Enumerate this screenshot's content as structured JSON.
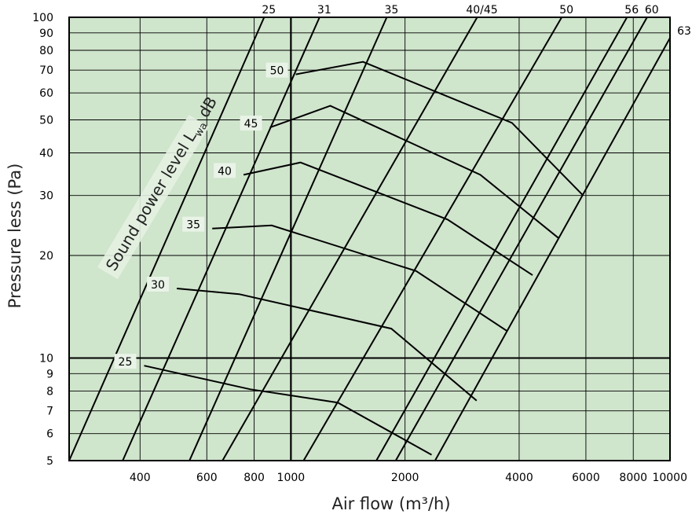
{
  "chart_data": {
    "type": "line",
    "title": "",
    "xlabel": "Air flow (m³/h)",
    "ylabel": "Pressure less (Pa)",
    "x_scale": "log",
    "y_scale": "log",
    "xlim": [
      260,
      10000
    ],
    "ylim": [
      5,
      100
    ],
    "grid": true,
    "x_ticks": [
      400,
      600,
      800,
      1000,
      2000,
      4000,
      6000,
      8000,
      10000
    ],
    "y_ticks": [
      5,
      6,
      7,
      8,
      9,
      10,
      20,
      30,
      40,
      50,
      60,
      70,
      80,
      90,
      100
    ],
    "background_color": "#cfe5cc",
    "line_color": "#000000",
    "sound_power_title": {
      "main": "Sound power level L",
      "subscript": "wa",
      "unit": " dB"
    },
    "fan_series": [
      {
        "name": "25",
        "points": [
          [
            260,
            5
          ],
          [
            850,
            100
          ]
        ]
      },
      {
        "name": "31",
        "points": [
          [
            360,
            5
          ],
          [
            1190,
            100
          ]
        ]
      },
      {
        "name": "35",
        "points": [
          [
            540,
            5
          ],
          [
            1790,
            100
          ]
        ]
      },
      {
        "name": "40/45",
        "points": [
          [
            660,
            5
          ],
          [
            3100,
            100
          ]
        ]
      },
      {
        "name": "50",
        "points": [
          [
            1080,
            5
          ],
          [
            5180,
            100
          ]
        ]
      },
      {
        "name": "56",
        "points": [
          [
            1680,
            5
          ],
          [
            7700,
            100
          ]
        ]
      },
      {
        "name": "60",
        "points": [
          [
            1890,
            5
          ],
          [
            8700,
            100
          ]
        ]
      },
      {
        "name": "63",
        "points": [
          [
            2400,
            5
          ],
          [
            10000,
            87
          ]
        ]
      }
    ],
    "sound_series": [
      {
        "name": "25",
        "points": [
          [
            410,
            9.5
          ],
          [
            780,
            8.1
          ],
          [
            1330,
            7.4
          ],
          [
            2350,
            5.2
          ]
        ]
      },
      {
        "name": "30",
        "points": [
          [
            500,
            16
          ],
          [
            730,
            15.4
          ],
          [
            1840,
            12.2
          ],
          [
            3090,
            7.5
          ]
        ]
      },
      {
        "name": "35",
        "points": [
          [
            620,
            24
          ],
          [
            890,
            24.5
          ],
          [
            2140,
            18
          ],
          [
            3720,
            12
          ]
        ]
      },
      {
        "name": "40",
        "points": [
          [
            750,
            34.5
          ],
          [
            1060,
            37.5
          ],
          [
            2590,
            25.5
          ],
          [
            4340,
            17.5
          ]
        ]
      },
      {
        "name": "45",
        "points": [
          [
            880,
            47.5
          ],
          [
            1270,
            55
          ],
          [
            3160,
            34.5
          ],
          [
            5080,
            22.5
          ]
        ]
      },
      {
        "name": "50",
        "points": [
          [
            1030,
            68
          ],
          [
            1550,
            74
          ],
          [
            3830,
            49
          ],
          [
            5900,
            30
          ]
        ]
      }
    ]
  }
}
